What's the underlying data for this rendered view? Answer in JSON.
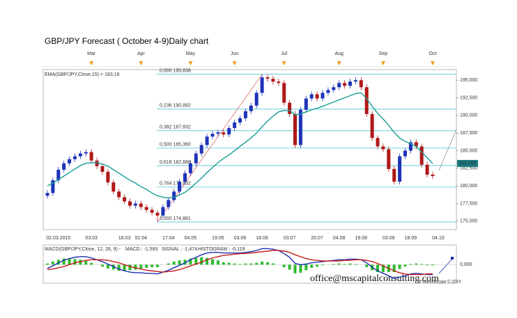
{
  "chart_data": [
    {
      "type": "candlestick",
      "title": "GBP/JPY Forecast ( October 4-9)Daily chart",
      "categories": [
        null,
        null,
        "02.03.2015",
        null,
        null,
        null,
        null,
        null,
        "03.03",
        null,
        null,
        null,
        null,
        null,
        "18.03",
        null,
        null,
        "02.04",
        null,
        null,
        null,
        null,
        "17.04",
        null,
        null,
        null,
        "04.05",
        null,
        null,
        null,
        null,
        "19.05",
        null,
        null,
        null,
        "03.06",
        null,
        null,
        null,
        "18.06",
        null,
        null,
        null,
        null,
        "03.07",
        null,
        null,
        null,
        null,
        "20.07",
        null,
        null,
        null,
        "04.08",
        null,
        null,
        null,
        "19.08",
        null,
        null,
        null,
        null,
        "03.09",
        null,
        null,
        null,
        "18.09",
        null,
        null,
        null,
        null,
        "04.10"
      ],
      "top_categories": [
        null,
        null,
        null,
        null,
        null,
        null,
        null,
        null,
        "Mar",
        null,
        null,
        null,
        null,
        null,
        null,
        null,
        null,
        "Apr",
        null,
        null,
        null,
        null,
        null,
        null,
        null,
        null,
        "May",
        null,
        null,
        null,
        null,
        null,
        null,
        null,
        "Jun",
        null,
        null,
        null,
        null,
        null,
        null,
        null,
        null,
        "Jul",
        null,
        null,
        null,
        null,
        null,
        null,
        null,
        null,
        null,
        "Aug",
        null,
        null,
        null,
        null,
        null,
        null,
        null,
        "Sep",
        null,
        null,
        null,
        null,
        null,
        null,
        null,
        null,
        "Oct",
        null
      ],
      "open": [
        178.6,
        179.0,
        180.8,
        182.3,
        183.2,
        183.8,
        184.2,
        184.6,
        184.8,
        183.6,
        182.8,
        182.0,
        180.5,
        179.2,
        178.4,
        177.8,
        177.2,
        177.5,
        177.0,
        176.6,
        176.2,
        175.8,
        177.0,
        178.0,
        179.2,
        180.6,
        181.8,
        183.2,
        184.6,
        185.8,
        187.0,
        187.4,
        187.6,
        187.3,
        188.2,
        189.0,
        189.6,
        190.6,
        191.4,
        193.2,
        195.4,
        195.2,
        194.8,
        194.6,
        191.8,
        190.2,
        185.8,
        190.8,
        192.4,
        193.0,
        192.4,
        193.2,
        193.6,
        194.0,
        194.6,
        194.2,
        194.8,
        195.0,
        194.0,
        190.2,
        186.8,
        185.6,
        185.2,
        182.4,
        180.6,
        184.2,
        185.0,
        186.2,
        185.6,
        183.0,
        181.6,
        null
      ],
      "high": [
        179.4,
        181.2,
        182.7,
        183.6,
        184.2,
        184.6,
        185.0,
        185.2,
        185.2,
        184.0,
        183.2,
        182.4,
        180.9,
        179.6,
        178.8,
        178.2,
        177.9,
        177.9,
        177.4,
        177.0,
        176.6,
        177.4,
        178.4,
        179.6,
        181.0,
        182.2,
        183.6,
        185.0,
        186.2,
        187.4,
        187.8,
        188.0,
        188.0,
        188.6,
        189.4,
        190.0,
        191.0,
        191.8,
        193.6,
        195.8,
        195.8,
        195.6,
        195.2,
        195.0,
        192.2,
        190.6,
        191.2,
        192.8,
        193.4,
        193.4,
        193.6,
        194.0,
        194.4,
        195.0,
        195.0,
        195.2,
        195.4,
        195.4,
        194.4,
        190.6,
        187.2,
        186.0,
        185.6,
        182.8,
        184.6,
        185.4,
        186.6,
        186.6,
        186.0,
        183.4,
        182.0,
        null
      ],
      "low": [
        178.2,
        178.6,
        180.4,
        181.9,
        182.8,
        183.4,
        183.8,
        184.2,
        183.2,
        182.4,
        181.6,
        180.1,
        178.8,
        178.0,
        177.4,
        176.8,
        176.8,
        176.6,
        176.2,
        175.8,
        175.0,
        175.4,
        176.6,
        177.6,
        178.8,
        180.2,
        181.4,
        182.8,
        184.2,
        185.4,
        186.6,
        187.0,
        186.9,
        186.9,
        187.8,
        188.6,
        189.2,
        190.2,
        191.0,
        192.8,
        194.8,
        194.4,
        194.2,
        191.4,
        189.8,
        185.4,
        185.4,
        190.4,
        192.0,
        192.0,
        192.0,
        192.8,
        193.2,
        193.6,
        193.8,
        193.8,
        194.4,
        193.6,
        189.8,
        186.4,
        185.2,
        184.8,
        182.0,
        180.2,
        180.2,
        183.8,
        184.6,
        185.2,
        182.6,
        181.2,
        181.0,
        null
      ],
      "close": [
        179.0,
        180.8,
        182.3,
        183.2,
        183.8,
        184.2,
        184.6,
        184.8,
        183.6,
        182.8,
        182.0,
        180.5,
        179.2,
        178.4,
        177.8,
        177.2,
        177.5,
        177.0,
        176.6,
        176.2,
        175.8,
        177.0,
        178.0,
        179.2,
        180.6,
        181.8,
        183.2,
        184.6,
        185.8,
        187.0,
        187.4,
        187.6,
        187.3,
        188.2,
        189.0,
        189.6,
        190.6,
        191.4,
        193.2,
        195.4,
        195.2,
        194.8,
        194.6,
        191.8,
        190.2,
        185.8,
        190.8,
        192.4,
        193.0,
        192.4,
        193.2,
        193.6,
        194.0,
        194.6,
        194.2,
        194.8,
        195.0,
        194.0,
        190.2,
        186.8,
        185.6,
        185.2,
        182.4,
        180.6,
        184.2,
        185.0,
        186.2,
        185.6,
        183.0,
        181.6,
        181.4,
        null
      ],
      "up_color": "#1f33b8",
      "down_color": "#b01818",
      "ema": {
        "name": "EMA(GBP/JPY,Close,15) = 183,18",
        "color": "#169c94",
        "values": [
          180.0,
          180.4,
          180.9,
          181.4,
          181.9,
          182.4,
          182.9,
          183.2,
          183.3,
          183.3,
          183.1,
          182.8,
          182.3,
          181.8,
          181.3,
          180.8,
          180.4,
          179.9,
          179.5,
          179.0,
          178.6,
          178.4,
          178.3,
          178.4,
          178.7,
          179.1,
          179.7,
          180.4,
          181.1,
          181.9,
          182.6,
          183.3,
          183.9,
          184.4,
          185.0,
          185.6,
          186.2,
          186.8,
          187.5,
          188.4,
          189.2,
          189.9,
          190.5,
          190.7,
          190.7,
          190.1,
          190.2,
          190.5,
          190.8,
          191.0,
          191.3,
          191.6,
          191.9,
          192.2,
          192.5,
          192.8,
          193.1,
          193.2,
          192.4,
          191.3,
          190.3,
          189.5,
          188.6,
          187.6,
          186.8,
          186.3,
          186.0,
          185.6,
          184.8,
          184.0,
          183.18,
          null
        ]
      },
      "fib_levels": [
        {
          "value": 195.838,
          "label": "0,000 195,838"
        },
        {
          "value": 190.892,
          "label": "0,236 190,892"
        },
        {
          "value": 187.832,
          "label": "0,382 187,832"
        },
        {
          "value": 185.36,
          "label": "0,500 185,360"
        },
        {
          "value": 182.888,
          "label": "0,618 182,888"
        },
        {
          "value": 179.832,
          "label": "0,764 179,832"
        },
        {
          "value": 174.881,
          "label": "1,000 174,881"
        }
      ],
      "fib_color": "#4fc0d6",
      "last_price": {
        "value": 183.189,
        "label": "183,189"
      },
      "ylim": [
        173.8,
        196.5
      ],
      "yticks": [
        {
          "value": 175,
          "label": "175,000"
        },
        {
          "value": 177.5,
          "label": "177,500"
        },
        {
          "value": 180,
          "label": "180,000"
        },
        {
          "value": 182.5,
          "label": "182,500"
        },
        {
          "value": 185,
          "label": "185,000"
        },
        {
          "value": 187.5,
          "label": "187,500"
        },
        {
          "value": 190,
          "label": "190,000"
        },
        {
          "value": 192.5,
          "label": "192,500"
        },
        {
          "value": 195,
          "label": "195,000"
        }
      ],
      "grid": false
    },
    {
      "type": "macd",
      "title": "MACD(GBP/JPY,Close, 12, 26, 9) -",
      "series": [
        {
          "name": "MACD : -1,593",
          "kind": "line",
          "color": "#1c2fb0",
          "values": [
            -0.6,
            -0.2,
            0.3,
            0.7,
            1.0,
            1.2,
            1.3,
            1.3,
            1.1,
            0.8,
            0.5,
            0.1,
            -0.3,
            -0.7,
            -1.0,
            -1.2,
            -1.3,
            -1.3,
            -1.4,
            -1.4,
            -1.5,
            -1.2,
            -0.9,
            -0.5,
            -0.1,
            0.3,
            0.8,
            1.2,
            1.6,
            1.9,
            2.0,
            2.0,
            1.9,
            1.9,
            1.9,
            1.9,
            2.0,
            2.1,
            2.3,
            2.6,
            2.6,
            2.5,
            2.3,
            1.8,
            1.2,
            0.2,
            0.0,
            0.1,
            0.3,
            0.4,
            0.5,
            0.6,
            0.7,
            0.8,
            0.8,
            0.9,
            0.9,
            0.8,
            0.3,
            -0.4,
            -1.0,
            -1.4,
            -1.8,
            -2.2,
            -2.0,
            -1.8,
            -1.5,
            -1.4,
            -1.5,
            -1.6,
            -1.593,
            null
          ]
        },
        {
          "name": "SIGNAL : -1,474",
          "kind": "line",
          "color": "#c41a1a",
          "values": [
            -0.8,
            -0.7,
            -0.5,
            -0.3,
            0.0,
            0.3,
            0.5,
            0.7,
            0.8,
            0.8,
            0.8,
            0.7,
            0.5,
            0.3,
            0.0,
            -0.3,
            -0.5,
            -0.7,
            -0.9,
            -1.0,
            -1.1,
            -1.2,
            -1.1,
            -1.0,
            -0.8,
            -0.5,
            -0.2,
            0.1,
            0.4,
            0.8,
            1.1,
            1.3,
            1.5,
            1.6,
            1.7,
            1.8,
            1.8,
            1.9,
            2.0,
            2.1,
            2.2,
            2.3,
            2.3,
            2.2,
            2.0,
            1.6,
            1.3,
            1.0,
            0.8,
            0.7,
            0.6,
            0.6,
            0.6,
            0.6,
            0.7,
            0.7,
            0.8,
            0.8,
            0.7,
            0.5,
            0.2,
            -0.2,
            -0.6,
            -1.0,
            -1.3,
            -1.5,
            -1.6,
            -1.6,
            -1.6,
            -1.5,
            -1.474,
            null
          ]
        },
        {
          "name": "HISTOGRAM : -0,119",
          "kind": "bar",
          "color": "#2dbb2d",
          "values": [
            0.2,
            0.5,
            0.8,
            1.0,
            1.0,
            0.9,
            0.8,
            0.6,
            0.3,
            0.0,
            -0.3,
            -0.6,
            -0.8,
            -1.0,
            -1.0,
            -0.9,
            -0.8,
            -0.6,
            -0.5,
            -0.4,
            -0.4,
            0.0,
            0.2,
            0.5,
            0.7,
            0.8,
            1.0,
            1.1,
            1.2,
            1.1,
            0.9,
            0.7,
            0.4,
            0.3,
            0.2,
            0.1,
            0.2,
            0.2,
            0.3,
            0.5,
            0.4,
            0.2,
            0.0,
            -0.4,
            -0.8,
            -1.4,
            -1.3,
            -0.9,
            -0.5,
            -0.3,
            -0.1,
            0.0,
            0.1,
            0.2,
            0.1,
            0.2,
            0.1,
            0.0,
            -0.4,
            -0.9,
            -1.2,
            -1.2,
            -1.2,
            -1.2,
            -0.7,
            -0.3,
            0.1,
            0.2,
            0.1,
            -0.1,
            -0.119,
            null
          ]
        }
      ],
      "ylim": [
        -3,
        3.2
      ],
      "yticks": [
        {
          "value": 0,
          "label": "0,000"
        }
      ]
    }
  ],
  "watermark": "office@mscapitalconsulting.com",
  "copyright": "© Marketscope © 2015"
}
